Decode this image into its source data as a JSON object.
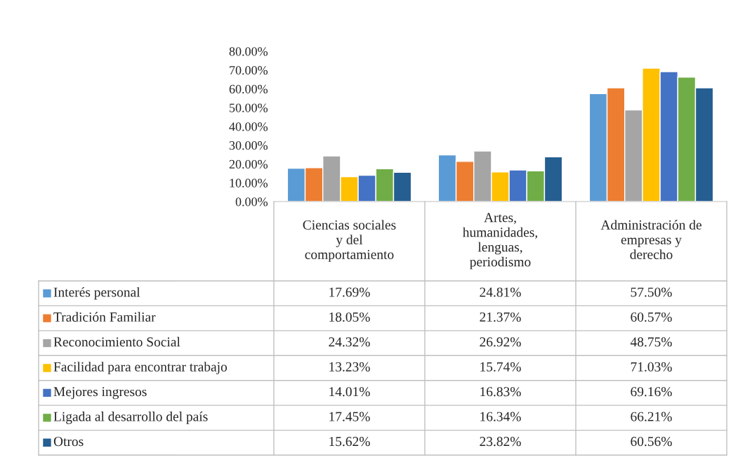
{
  "chart_data": {
    "type": "bar",
    "categories": [
      "Ciencias sociales\ny del\ncomportamiento",
      "Artes,\nhumanidades,\nlenguas,\nperiodismo",
      "Administración de\nempresas y\nderecho"
    ],
    "ylim": [
      0,
      80
    ],
    "yticks": [
      {
        "value": 0,
        "label": "0.00%"
      },
      {
        "value": 10,
        "label": "10.00%"
      },
      {
        "value": 20,
        "label": "20.00%"
      },
      {
        "value": 30,
        "label": "30.00%"
      },
      {
        "value": 40,
        "label": "40.00%"
      },
      {
        "value": 50,
        "label": "50.00%"
      },
      {
        "value": 60,
        "label": "60.00%"
      },
      {
        "value": 70,
        "label": "70.00%"
      },
      {
        "value": 80,
        "label": "80.00%"
      }
    ],
    "grid": false,
    "legend": "bottom",
    "series": [
      {
        "name": "Interés personal",
        "color": "#5b9bd5",
        "values": [
          17.69,
          24.81,
          57.5
        ],
        "value_labels": [
          "17.69%",
          "24.81%",
          "57.50%"
        ]
      },
      {
        "name": "Tradición Familiar",
        "color": "#ed7d31",
        "values": [
          18.05,
          21.37,
          60.57
        ],
        "value_labels": [
          "18.05%",
          "21.37%",
          "60.57%"
        ]
      },
      {
        "name": "Reconocimiento Social",
        "color": "#a5a5a5",
        "values": [
          24.32,
          26.92,
          48.75
        ],
        "value_labels": [
          "24.32%",
          "26.92%",
          "48.75%"
        ]
      },
      {
        "name": "Facilidad para encontrar trabajo",
        "color": "#ffc000",
        "values": [
          13.23,
          15.74,
          71.03
        ],
        "value_labels": [
          "13.23%",
          "15.74%",
          "71.03%"
        ]
      },
      {
        "name": "Mejores ingresos",
        "color": "#4472c4",
        "values": [
          14.01,
          16.83,
          69.16
        ],
        "value_labels": [
          "14.01%",
          "16.83%",
          "69.16%"
        ]
      },
      {
        "name": "Ligada al desarrollo del país",
        "color": "#70ad47",
        "values": [
          17.45,
          16.34,
          66.21
        ],
        "value_labels": [
          "17.45%",
          "16.34%",
          "66.21%"
        ]
      },
      {
        "name": "Otros",
        "color": "#255e91",
        "values": [
          15.62,
          23.82,
          60.56
        ],
        "value_labels": [
          "15.62%",
          "23.82%",
          "60.56%"
        ]
      }
    ]
  }
}
